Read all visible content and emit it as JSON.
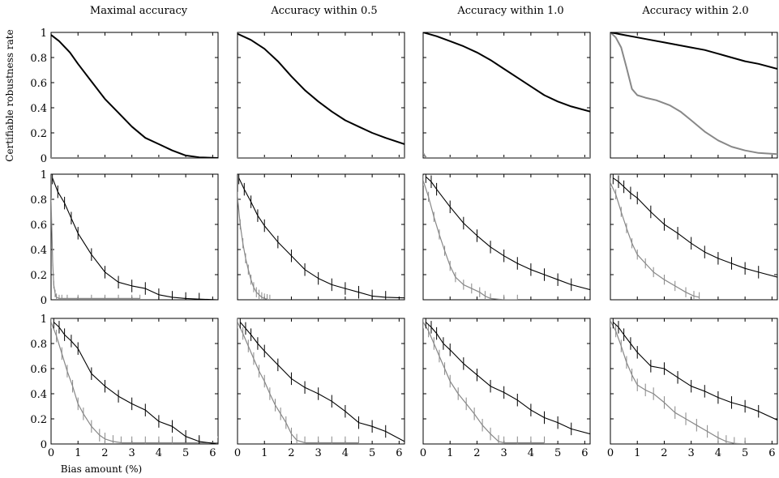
{
  "figure": {
    "column_titles": [
      "Maximal accuracy",
      "Accuracy within 0.5",
      "Accuracy within 1.0",
      "Accuracy within 2.0"
    ],
    "ylabel": "Certifiable robustness rate",
    "xlabel": "Bias amount (%)",
    "xtick_labels": [
      "0",
      "1",
      "2",
      "3",
      "4",
      "5",
      "6"
    ],
    "ytick_labels": [
      "0",
      "0.2",
      "0.4",
      "0.6",
      "0.8",
      "1"
    ]
  },
  "colors": {
    "black_series": "#000000",
    "gray_series": "#888888"
  },
  "chart_data": [
    {
      "type": "line",
      "row": 0,
      "col": 0,
      "xlim": [
        0,
        6.2
      ],
      "ylim": [
        0,
        1
      ],
      "grid": false,
      "series": [
        {
          "color": "black",
          "x": [
            0,
            0.3,
            0.7,
            1,
            1.5,
            2,
            2.5,
            3,
            3.5,
            4,
            4.5,
            5,
            5.5,
            6.2
          ],
          "y": [
            0.98,
            0.93,
            0.84,
            0.75,
            0.61,
            0.47,
            0.36,
            0.25,
            0.16,
            0.11,
            0.06,
            0.02,
            0.005,
            0
          ]
        },
        {
          "color": "gray",
          "x": [
            0,
            6.2
          ],
          "y": [
            0,
            0
          ]
        }
      ]
    },
    {
      "type": "line",
      "row": 0,
      "col": 1,
      "xlim": [
        0,
        6.2
      ],
      "ylim": [
        0,
        1
      ],
      "grid": false,
      "series": [
        {
          "color": "black",
          "x": [
            0,
            0.5,
            1,
            1.5,
            2,
            2.5,
            3,
            3.5,
            4,
            4.5,
            5,
            5.5,
            6.2
          ],
          "y": [
            0.99,
            0.94,
            0.87,
            0.77,
            0.65,
            0.54,
            0.45,
            0.37,
            0.3,
            0.25,
            0.2,
            0.16,
            0.11
          ]
        },
        {
          "color": "gray",
          "x": [
            0,
            6.2
          ],
          "y": [
            0,
            0
          ]
        }
      ]
    },
    {
      "type": "line",
      "row": 0,
      "col": 2,
      "xlim": [
        0,
        6.2
      ],
      "ylim": [
        0,
        1
      ],
      "grid": false,
      "series": [
        {
          "color": "black",
          "x": [
            0,
            0.5,
            1,
            1.5,
            2,
            2.5,
            3,
            3.5,
            4,
            4.5,
            5,
            5.5,
            6.2
          ],
          "y": [
            1.0,
            0.97,
            0.93,
            0.89,
            0.84,
            0.78,
            0.71,
            0.64,
            0.57,
            0.5,
            0.45,
            0.41,
            0.37
          ]
        },
        {
          "color": "gray",
          "x": [
            0,
            0.05,
            0.12,
            6.2
          ],
          "y": [
            0.04,
            0.02,
            0,
            0
          ]
        }
      ]
    },
    {
      "type": "line",
      "row": 0,
      "col": 3,
      "xlim": [
        0,
        6.2
      ],
      "ylim": [
        0,
        1
      ],
      "grid": false,
      "series": [
        {
          "color": "black",
          "x": [
            0,
            0.5,
            1,
            1.5,
            2,
            2.5,
            3,
            3.5,
            4,
            4.5,
            5,
            5.5,
            6.2
          ],
          "y": [
            1.0,
            0.98,
            0.96,
            0.94,
            0.92,
            0.9,
            0.88,
            0.86,
            0.83,
            0.8,
            0.77,
            0.75,
            0.71
          ]
        },
        {
          "color": "gray",
          "x": [
            0,
            0.2,
            0.4,
            0.6,
            0.8,
            1.0,
            1.3,
            1.7,
            2.2,
            2.6,
            3.0,
            3.5,
            4.0,
            4.5,
            5.0,
            5.5,
            6.2
          ],
          "y": [
            1.0,
            0.96,
            0.88,
            0.72,
            0.55,
            0.5,
            0.48,
            0.46,
            0.42,
            0.37,
            0.3,
            0.21,
            0.14,
            0.09,
            0.06,
            0.04,
            0.03
          ]
        }
      ]
    },
    {
      "type": "line",
      "row": 1,
      "col": 0,
      "xlim": [
        0,
        6.2
      ],
      "ylim": [
        0,
        1
      ],
      "grid": false,
      "series": [
        {
          "color": "black",
          "x": [
            0.05,
            0.25,
            0.5,
            0.75,
            1,
            1.5,
            2,
            2.5,
            3,
            3.5,
            4,
            4.5,
            5,
            5.5,
            6.2
          ],
          "y": [
            0.97,
            0.86,
            0.77,
            0.65,
            0.53,
            0.36,
            0.22,
            0.14,
            0.11,
            0.09,
            0.04,
            0.02,
            0.01,
            0.005,
            0
          ],
          "err": 0.05
        },
        {
          "color": "gray",
          "x": [
            0,
            0.03,
            0.06,
            0.1,
            0.15,
            0.2,
            0.3,
            0.4,
            0.6,
            1.0,
            1.5,
            2.0,
            2.5,
            3.0,
            3.3
          ],
          "y": [
            0.78,
            0.55,
            0.3,
            0.12,
            0.05,
            0.02,
            0.01,
            0.01,
            0.01,
            0.01,
            0.01,
            0.01,
            0.01,
            0.01,
            0.01
          ],
          "err": 0.03
        }
      ]
    },
    {
      "type": "line",
      "row": 1,
      "col": 1,
      "xlim": [
        0,
        6.2
      ],
      "ylim": [
        0,
        1
      ],
      "grid": false,
      "series": [
        {
          "color": "black",
          "x": [
            0.05,
            0.25,
            0.5,
            0.75,
            1,
            1.5,
            2,
            2.5,
            3,
            3.5,
            4,
            4.5,
            5,
            5.5,
            6.2
          ],
          "y": [
            0.97,
            0.88,
            0.78,
            0.67,
            0.59,
            0.46,
            0.35,
            0.24,
            0.17,
            0.12,
            0.09,
            0.06,
            0.03,
            0.02,
            0.015
          ],
          "err": 0.05
        },
        {
          "color": "gray",
          "x": [
            0,
            0.1,
            0.2,
            0.3,
            0.4,
            0.5,
            0.6,
            0.7,
            0.8,
            0.9,
            1.0,
            1.1,
            1.2
          ],
          "y": [
            0.82,
            0.6,
            0.45,
            0.33,
            0.24,
            0.16,
            0.1,
            0.06,
            0.04,
            0.02,
            0.01,
            0.005,
            0
          ],
          "err": 0.04
        }
      ]
    },
    {
      "type": "line",
      "row": 1,
      "col": 2,
      "xlim": [
        0,
        6.2
      ],
      "ylim": [
        0,
        1
      ],
      "grid": false,
      "series": [
        {
          "color": "black",
          "x": [
            0.1,
            0.3,
            0.5,
            1,
            1.5,
            2,
            2.5,
            3,
            3.5,
            4,
            4.5,
            5,
            5.5,
            6.2
          ],
          "y": [
            0.98,
            0.94,
            0.88,
            0.74,
            0.61,
            0.51,
            0.42,
            0.35,
            0.29,
            0.24,
            0.2,
            0.16,
            0.12,
            0.08
          ],
          "err": 0.05
        },
        {
          "color": "gray",
          "x": [
            0,
            0.2,
            0.4,
            0.6,
            0.8,
            1.0,
            1.2,
            1.5,
            1.8,
            2.1,
            2.3,
            2.5,
            3.0,
            3.5
          ],
          "y": [
            0.95,
            0.82,
            0.66,
            0.52,
            0.39,
            0.27,
            0.18,
            0.12,
            0.09,
            0.06,
            0.03,
            0.01,
            0,
            0
          ],
          "err": 0.04
        }
      ]
    },
    {
      "type": "line",
      "row": 1,
      "col": 3,
      "xlim": [
        0,
        6.2
      ],
      "ylim": [
        0,
        1
      ],
      "grid": false,
      "series": [
        {
          "color": "black",
          "x": [
            0.1,
            0.3,
            0.5,
            0.75,
            1,
            1.5,
            2,
            2.5,
            3,
            3.5,
            4,
            4.5,
            5,
            5.5,
            6.2
          ],
          "y": [
            0.97,
            0.94,
            0.9,
            0.85,
            0.81,
            0.7,
            0.6,
            0.53,
            0.45,
            0.38,
            0.33,
            0.29,
            0.25,
            0.22,
            0.18
          ],
          "err": 0.05
        },
        {
          "color": "gray",
          "x": [
            0,
            0.2,
            0.4,
            0.6,
            0.8,
            1.0,
            1.3,
            1.6,
            2.0,
            2.4,
            2.8,
            3.1,
            3.3
          ],
          "y": [
            0.93,
            0.84,
            0.7,
            0.57,
            0.45,
            0.36,
            0.29,
            0.22,
            0.16,
            0.11,
            0.06,
            0.03,
            0.02
          ],
          "err": 0.04
        }
      ]
    },
    {
      "type": "line",
      "row": 2,
      "col": 0,
      "xlim": [
        0,
        6.2
      ],
      "ylim": [
        0,
        1
      ],
      "grid": false,
      "series": [
        {
          "color": "black",
          "x": [
            0.1,
            0.3,
            0.5,
            0.75,
            1,
            1.5,
            2,
            2.5,
            3,
            3.5,
            4,
            4.5,
            5,
            5.5,
            6.2
          ],
          "y": [
            0.97,
            0.93,
            0.87,
            0.82,
            0.76,
            0.56,
            0.46,
            0.38,
            0.32,
            0.27,
            0.18,
            0.14,
            0.06,
            0.02,
            0
          ],
          "err": 0.05
        },
        {
          "color": "gray",
          "x": [
            0,
            0.2,
            0.4,
            0.6,
            0.8,
            1.0,
            1.2,
            1.5,
            1.8,
            2.0,
            2.3,
            2.6,
            3.0,
            3.5,
            4.0,
            4.5,
            5.0,
            5.5,
            6.2
          ],
          "y": [
            0.97,
            0.86,
            0.72,
            0.58,
            0.46,
            0.32,
            0.24,
            0.14,
            0.07,
            0.04,
            0.02,
            0.01,
            0.01,
            0.01,
            0.01,
            0.01,
            0.01,
            0.01,
            0.01
          ],
          "err": 0.05
        }
      ]
    },
    {
      "type": "line",
      "row": 2,
      "col": 1,
      "xlim": [
        0,
        6.2
      ],
      "ylim": [
        0,
        1
      ],
      "grid": false,
      "series": [
        {
          "color": "black",
          "x": [
            0.1,
            0.3,
            0.5,
            0.75,
            1,
            1.5,
            2,
            2.5,
            3,
            3.5,
            4,
            4.5,
            5,
            5.5,
            6.2
          ],
          "y": [
            0.97,
            0.92,
            0.87,
            0.8,
            0.74,
            0.63,
            0.52,
            0.45,
            0.4,
            0.34,
            0.26,
            0.17,
            0.14,
            0.1,
            0.02
          ],
          "err": 0.05
        },
        {
          "color": "gray",
          "x": [
            0,
            0.2,
            0.4,
            0.6,
            0.8,
            1.0,
            1.2,
            1.4,
            1.6,
            1.8,
            2.0,
            2.2,
            2.5,
            3.0,
            3.5,
            4.0,
            4.5
          ],
          "y": [
            0.97,
            0.88,
            0.78,
            0.68,
            0.58,
            0.5,
            0.4,
            0.31,
            0.24,
            0.17,
            0.08,
            0.03,
            0.01,
            0.01,
            0.01,
            0.01,
            0.01
          ],
          "err": 0.05
        }
      ]
    },
    {
      "type": "line",
      "row": 2,
      "col": 2,
      "xlim": [
        0,
        6.2
      ],
      "ylim": [
        0,
        1
      ],
      "grid": false,
      "series": [
        {
          "color": "black",
          "x": [
            0.1,
            0.3,
            0.5,
            0.75,
            1,
            1.5,
            2,
            2.5,
            3,
            3.5,
            4,
            4.5,
            5,
            5.5,
            6.2
          ],
          "y": [
            0.97,
            0.93,
            0.88,
            0.8,
            0.75,
            0.64,
            0.55,
            0.46,
            0.41,
            0.35,
            0.27,
            0.21,
            0.17,
            0.12,
            0.08
          ],
          "err": 0.05
        },
        {
          "color": "gray",
          "x": [
            0,
            0.2,
            0.4,
            0.6,
            0.8,
            1.0,
            1.3,
            1.6,
            1.9,
            2.2,
            2.5,
            2.8,
            3.0,
            3.5,
            4.0,
            4.5
          ],
          "y": [
            0.97,
            0.9,
            0.8,
            0.7,
            0.6,
            0.5,
            0.4,
            0.32,
            0.24,
            0.15,
            0.08,
            0.02,
            0.01,
            0.01,
            0.01,
            0.01
          ],
          "err": 0.05
        }
      ]
    },
    {
      "type": "line",
      "row": 2,
      "col": 3,
      "xlim": [
        0,
        6.2
      ],
      "ylim": [
        0,
        1
      ],
      "grid": false,
      "series": [
        {
          "color": "black",
          "x": [
            0.1,
            0.3,
            0.5,
            0.75,
            1,
            1.5,
            2,
            2.5,
            3,
            3.5,
            4,
            4.5,
            5,
            5.5,
            6.2
          ],
          "y": [
            0.97,
            0.93,
            0.87,
            0.8,
            0.73,
            0.62,
            0.6,
            0.53,
            0.46,
            0.42,
            0.37,
            0.33,
            0.3,
            0.26,
            0.19
          ],
          "err": 0.05
        },
        {
          "color": "gray",
          "x": [
            0,
            0.2,
            0.4,
            0.6,
            0.8,
            1.0,
            1.3,
            1.6,
            2.0,
            2.4,
            2.8,
            3.2,
            3.6,
            4.0,
            4.3,
            4.6,
            5.0
          ],
          "y": [
            0.98,
            0.9,
            0.78,
            0.65,
            0.55,
            0.47,
            0.43,
            0.4,
            0.33,
            0.25,
            0.2,
            0.15,
            0.1,
            0.05,
            0.02,
            0.005,
            0
          ],
          "err": 0.05
        }
      ]
    }
  ]
}
